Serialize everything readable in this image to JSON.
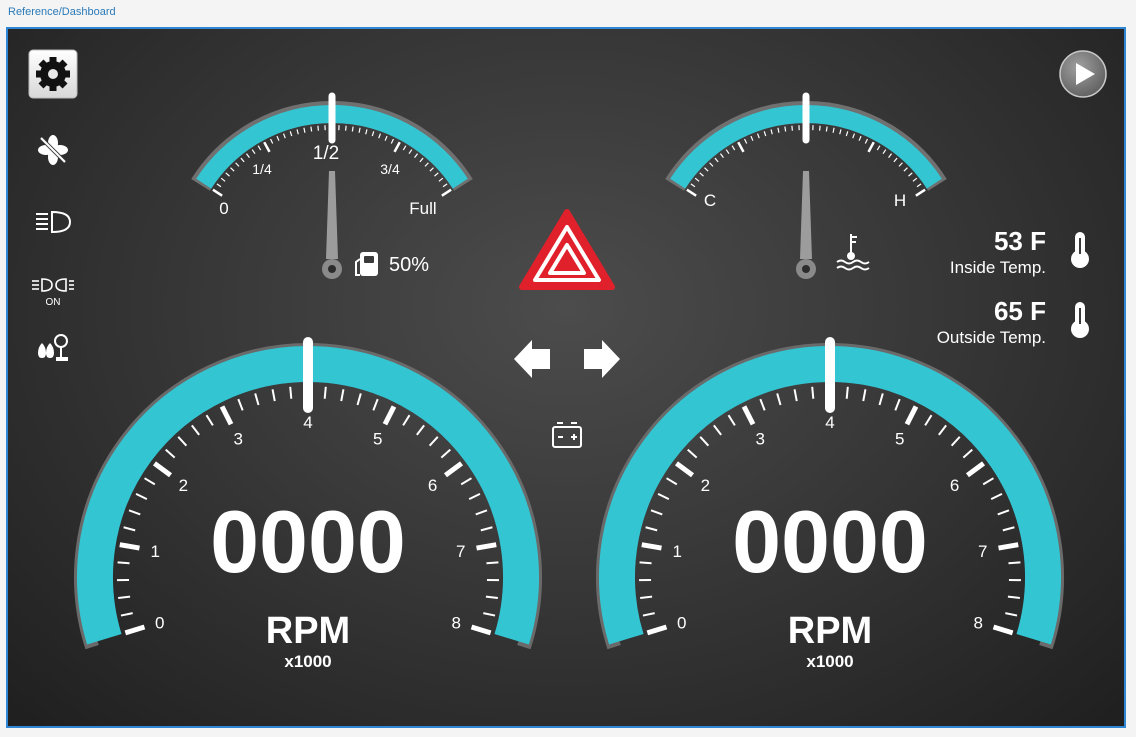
{
  "breadcrumb": "Reference/Dashboard",
  "icons": {
    "settings": "gear-icon",
    "fan": "fan-off-icon",
    "headlights": "headlight-icon",
    "fog": "fog-lights-icon",
    "fog_state": "ON",
    "wiper": "wiper-fluid-icon",
    "play": "play-icon",
    "hazard": "hazard-icon",
    "left": "turn-left-icon",
    "right": "turn-right-icon",
    "battery": "battery-icon"
  },
  "fuel": {
    "labels": [
      "0",
      "1/4",
      "1/2",
      "3/4",
      "Full"
    ],
    "percent_text": "50%",
    "level": 0.5
  },
  "temp": {
    "cold": "C",
    "hot": "H",
    "level": 0.5
  },
  "inside": {
    "value": "53 F",
    "label": "Inside Temp."
  },
  "outside": {
    "value": "65 F",
    "label": "Outside Temp."
  },
  "rpm_left": {
    "readout": "0000",
    "unit": "RPM",
    "multiplier": "x1000",
    "ticks": [
      "0",
      "1",
      "2",
      "3",
      "4",
      "5",
      "6",
      "7",
      "8"
    ]
  },
  "rpm_right": {
    "readout": "0000",
    "unit": "RPM",
    "multiplier": "x1000",
    "ticks": [
      "0",
      "1",
      "2",
      "3",
      "4",
      "5",
      "6",
      "7",
      "8"
    ]
  },
  "colors": {
    "accent": "#33c5d2",
    "hazard": "#e0202a",
    "panel": "#3a3a3a"
  }
}
